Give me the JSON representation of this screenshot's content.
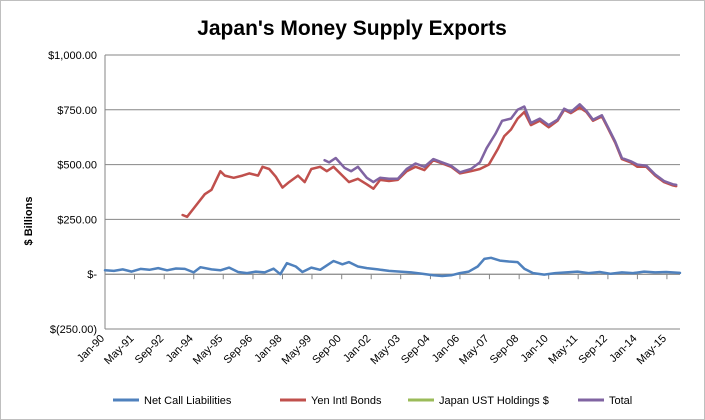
{
  "chart_data": {
    "type": "line",
    "title": "Japan's Money Supply Exports",
    "xlabel": "",
    "ylabel": "$ Billions",
    "ylim": [
      -250,
      1000
    ],
    "yticks": [
      {
        "value": 1000,
        "label": "$1,000.00"
      },
      {
        "value": 750,
        "label": "$750.00"
      },
      {
        "value": 500,
        "label": "$500.00"
      },
      {
        "value": 250,
        "label": "$250.00"
      },
      {
        "value": 0,
        "label": "$-"
      },
      {
        "value": -250,
        "label": "$(250.00)"
      }
    ],
    "x_range": [
      1990.0,
      2015.92
    ],
    "x_ticks": [
      {
        "value": 1990.0,
        "label": "Jan-90"
      },
      {
        "value": 1991.33,
        "label": "May-91"
      },
      {
        "value": 1992.67,
        "label": "Sep-92"
      },
      {
        "value": 1994.0,
        "label": "Jan-94"
      },
      {
        "value": 1995.33,
        "label": "May-95"
      },
      {
        "value": 1996.67,
        "label": "Sep-96"
      },
      {
        "value": 1998.0,
        "label": "Jan-98"
      },
      {
        "value": 1999.33,
        "label": "May-99"
      },
      {
        "value": 2000.67,
        "label": "Sep-00"
      },
      {
        "value": 2002.0,
        "label": "Jan-02"
      },
      {
        "value": 2003.33,
        "label": "May-03"
      },
      {
        "value": 2004.67,
        "label": "Sep-04"
      },
      {
        "value": 2006.0,
        "label": "Jan-06"
      },
      {
        "value": 2007.33,
        "label": "May-07"
      },
      {
        "value": 2008.67,
        "label": "Sep-08"
      },
      {
        "value": 2010.0,
        "label": "Jan-10"
      },
      {
        "value": 2011.33,
        "label": "May-11"
      },
      {
        "value": 2012.67,
        "label": "Sep-12"
      },
      {
        "value": 2014.0,
        "label": "Jan-14"
      },
      {
        "value": 2015.33,
        "label": "May-15"
      }
    ],
    "grid": "horizontal",
    "legend_position": "bottom",
    "series": [
      {
        "name": "Net Call Liabilities",
        "color": "#4f81bd",
        "points": [
          [
            1990.0,
            18
          ],
          [
            1990.4,
            15
          ],
          [
            1990.8,
            22
          ],
          [
            1991.2,
            12
          ],
          [
            1991.6,
            24
          ],
          [
            1992.0,
            20
          ],
          [
            1992.4,
            28
          ],
          [
            1992.8,
            18
          ],
          [
            1993.2,
            26
          ],
          [
            1993.6,
            24
          ],
          [
            1994.0,
            8
          ],
          [
            1994.3,
            32
          ],
          [
            1994.8,
            22
          ],
          [
            1995.2,
            18
          ],
          [
            1995.6,
            30
          ],
          [
            1996.0,
            10
          ],
          [
            1996.4,
            5
          ],
          [
            1996.8,
            12
          ],
          [
            1997.2,
            8
          ],
          [
            1997.6,
            25
          ],
          [
            1997.9,
            0
          ],
          [
            1998.2,
            50
          ],
          [
            1998.6,
            35
          ],
          [
            1998.9,
            10
          ],
          [
            1999.3,
            30
          ],
          [
            1999.7,
            20
          ],
          [
            2000.0,
            40
          ],
          [
            2000.3,
            60
          ],
          [
            2000.7,
            45
          ],
          [
            2001.0,
            55
          ],
          [
            2001.4,
            35
          ],
          [
            2001.8,
            28
          ],
          [
            2002.3,
            22
          ],
          [
            2002.8,
            15
          ],
          [
            2003.3,
            12
          ],
          [
            2003.8,
            8
          ],
          [
            2004.3,
            2
          ],
          [
            2004.8,
            -5
          ],
          [
            2005.2,
            -8
          ],
          [
            2005.6,
            -5
          ],
          [
            2006.0,
            5
          ],
          [
            2006.4,
            12
          ],
          [
            2006.8,
            35
          ],
          [
            2007.1,
            70
          ],
          [
            2007.4,
            75
          ],
          [
            2007.8,
            62
          ],
          [
            2008.2,
            58
          ],
          [
            2008.6,
            55
          ],
          [
            2008.9,
            25
          ],
          [
            2009.3,
            5
          ],
          [
            2009.8,
            -2
          ],
          [
            2010.3,
            5
          ],
          [
            2010.8,
            8
          ],
          [
            2011.3,
            12
          ],
          [
            2011.8,
            5
          ],
          [
            2012.3,
            10
          ],
          [
            2012.8,
            2
          ],
          [
            2013.3,
            8
          ],
          [
            2013.8,
            5
          ],
          [
            2014.3,
            12
          ],
          [
            2014.8,
            8
          ],
          [
            2015.3,
            10
          ],
          [
            2015.92,
            6
          ]
        ]
      },
      {
        "name": "Yen Intl Bonds",
        "color": "#c0504d",
        "points": [
          [
            1993.5,
            270
          ],
          [
            1993.7,
            262
          ],
          [
            1994.0,
            300
          ],
          [
            1994.5,
            365
          ],
          [
            1994.8,
            385
          ],
          [
            1995.2,
            470
          ],
          [
            1995.4,
            450
          ],
          [
            1995.8,
            440
          ],
          [
            1996.2,
            450
          ],
          [
            1996.5,
            460
          ],
          [
            1996.9,
            450
          ],
          [
            1997.1,
            490
          ],
          [
            1997.4,
            480
          ],
          [
            1997.7,
            445
          ],
          [
            1998.0,
            395
          ],
          [
            1998.3,
            420
          ],
          [
            1998.7,
            450
          ],
          [
            1999.0,
            420
          ],
          [
            1999.3,
            480
          ],
          [
            1999.7,
            490
          ],
          [
            2000.0,
            470
          ],
          [
            2000.3,
            490
          ],
          [
            2000.7,
            450
          ],
          [
            2001.0,
            420
          ],
          [
            2001.4,
            435
          ],
          [
            2001.8,
            410
          ],
          [
            2002.1,
            390
          ],
          [
            2002.4,
            430
          ],
          [
            2002.8,
            425
          ],
          [
            2003.2,
            430
          ],
          [
            2003.6,
            470
          ],
          [
            2004.0,
            490
          ],
          [
            2004.4,
            475
          ],
          [
            2004.8,
            520
          ],
          [
            2005.2,
            505
          ],
          [
            2005.6,
            490
          ],
          [
            2006.0,
            460
          ],
          [
            2006.5,
            470
          ],
          [
            2006.9,
            480
          ],
          [
            2007.3,
            500
          ],
          [
            2007.7,
            570
          ],
          [
            2008.0,
            630
          ],
          [
            2008.3,
            660
          ],
          [
            2008.6,
            710
          ],
          [
            2008.9,
            740
          ],
          [
            2009.2,
            680
          ],
          [
            2009.6,
            700
          ],
          [
            2010.0,
            670
          ],
          [
            2010.4,
            700
          ],
          [
            2010.7,
            750
          ],
          [
            2011.0,
            735
          ],
          [
            2011.4,
            760
          ],
          [
            2011.7,
            740
          ],
          [
            2012.0,
            700
          ],
          [
            2012.4,
            720
          ],
          [
            2012.7,
            660
          ],
          [
            2013.0,
            600
          ],
          [
            2013.3,
            525
          ],
          [
            2013.7,
            510
          ],
          [
            2014.0,
            490
          ],
          [
            2014.4,
            490
          ],
          [
            2014.8,
            450
          ],
          [
            2015.2,
            420
          ],
          [
            2015.6,
            405
          ],
          [
            2015.75,
            402
          ]
        ]
      },
      {
        "name": "Japan UST Holdings $",
        "color": "#9bbb59",
        "points": []
      },
      {
        "name": "Total",
        "color": "#8064a2",
        "points": [
          [
            1999.9,
            520
          ],
          [
            2000.1,
            510
          ],
          [
            2000.4,
            530
          ],
          [
            2000.8,
            485
          ],
          [
            2001.1,
            470
          ],
          [
            2001.4,
            490
          ],
          [
            2001.8,
            440
          ],
          [
            2002.1,
            420
          ],
          [
            2002.4,
            440
          ],
          [
            2002.8,
            435
          ],
          [
            2003.2,
            435
          ],
          [
            2003.6,
            480
          ],
          [
            2004.0,
            505
          ],
          [
            2004.4,
            490
          ],
          [
            2004.8,
            525
          ],
          [
            2005.2,
            510
          ],
          [
            2005.6,
            495
          ],
          [
            2006.0,
            465
          ],
          [
            2006.5,
            480
          ],
          [
            2006.9,
            510
          ],
          [
            2007.2,
            575
          ],
          [
            2007.6,
            640
          ],
          [
            2007.9,
            700
          ],
          [
            2008.3,
            710
          ],
          [
            2008.6,
            750
          ],
          [
            2008.9,
            765
          ],
          [
            2009.2,
            690
          ],
          [
            2009.6,
            710
          ],
          [
            2010.0,
            680
          ],
          [
            2010.4,
            705
          ],
          [
            2010.7,
            755
          ],
          [
            2011.0,
            740
          ],
          [
            2011.4,
            775
          ],
          [
            2011.7,
            745
          ],
          [
            2012.0,
            705
          ],
          [
            2012.4,
            725
          ],
          [
            2012.7,
            665
          ],
          [
            2013.0,
            605
          ],
          [
            2013.3,
            530
          ],
          [
            2013.7,
            515
          ],
          [
            2014.0,
            500
          ],
          [
            2014.4,
            495
          ],
          [
            2014.8,
            455
          ],
          [
            2015.2,
            425
          ],
          [
            2015.6,
            410
          ],
          [
            2015.75,
            408
          ]
        ]
      }
    ]
  }
}
